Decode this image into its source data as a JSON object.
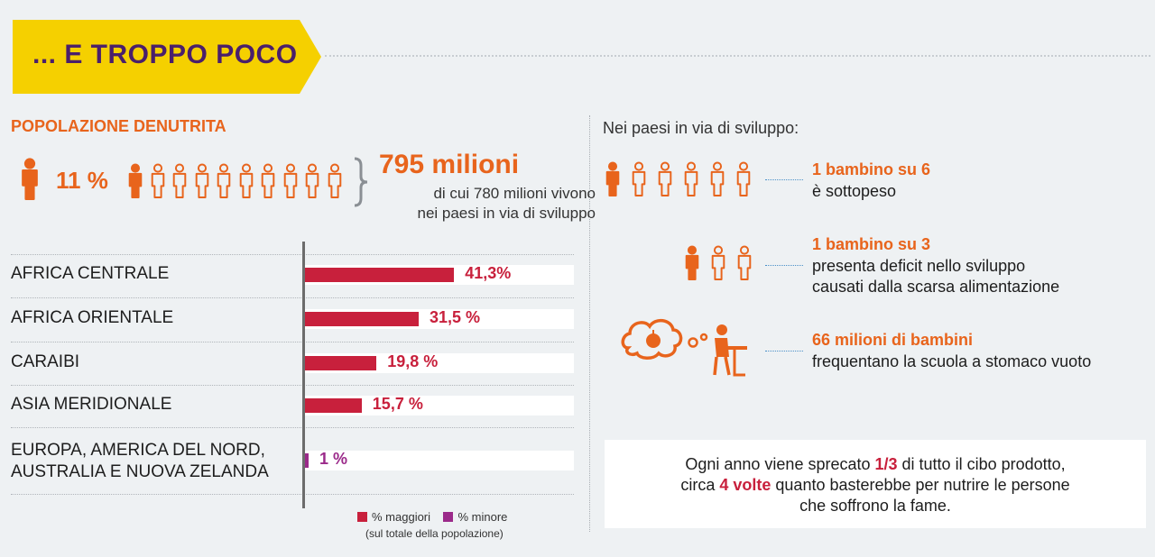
{
  "banner": {
    "title": "... E TROPPO POCO"
  },
  "left": {
    "section_title": "POPOLAZIONE DENUTRITA",
    "percent": "11 %",
    "total": "795 milioni",
    "total_sub_line1": "di cui 780 milioni vivono",
    "total_sub_line2": "nei paesi in via di sviluppo"
  },
  "colors": {
    "orange": "#e8641c",
    "maggiori": "#c8203c",
    "minore": "#9b2a8a",
    "banner": "#f5d000",
    "title_purple": "#4a1f6b"
  },
  "chart_data": {
    "type": "bar",
    "orientation": "horizontal",
    "categories": [
      "AFRICA CENTRALE",
      "AFRICA ORIENTALE",
      "CARAIBI",
      "ASIA MERIDIONALE",
      "EUROPA, AMERICA DEL NORD, AUSTRALIA E NUOVA ZELANDA"
    ],
    "category_lines": [
      [
        "AFRICA CENTRALE"
      ],
      [
        "AFRICA ORIENTALE"
      ],
      [
        "CARAIBI"
      ],
      [
        "ASIA MERIDIONALE"
      ],
      [
        "EUROPA, AMERICA DEL NORD,",
        "AUSTRALIA E NUOVA ZELANDA"
      ]
    ],
    "values": [
      41.3,
      31.5,
      19.8,
      15.7,
      1
    ],
    "value_labels": [
      "41,3%",
      "31,5 %",
      "19,8 %",
      "15,7 %",
      "1 %"
    ],
    "value_groups": [
      "maggiori",
      "maggiori",
      "maggiori",
      "maggiori",
      "minore"
    ],
    "xlim": [
      0,
      60
    ],
    "legend": [
      {
        "key": "maggiori",
        "label": "% maggiori"
      },
      {
        "key": "minore",
        "label": "% minore"
      }
    ],
    "legend_note": "(sul totale della popolazione)"
  },
  "right": {
    "title": "Nei paesi in via di sviluppo:",
    "stat1_head": "1 bambino su 6",
    "stat1_line1": "è sottopeso",
    "stat2_head": "1 bambino su 3",
    "stat2_line1": "presenta deficit nello sviluppo",
    "stat2_line2": "causati dalla scarsa alimentazione",
    "stat3_head": "66 milioni di bambini",
    "stat3_line1": "frequentano la scuola a stomaco vuoto"
  },
  "note": {
    "part1": "Ogni anno viene sprecato ",
    "bold1": "1/3",
    "part2": " di tutto il cibo prodotto,",
    "part3": "circa ",
    "bold2": "4 volte",
    "part4": " quanto basterebbe per nutrire le persone",
    "part5": "che soffrono la fame."
  }
}
